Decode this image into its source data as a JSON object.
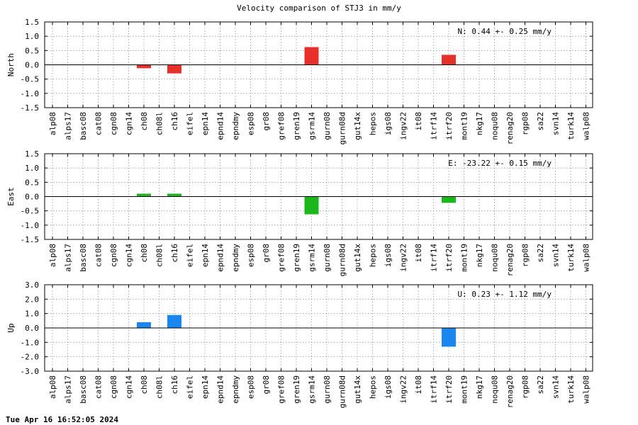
{
  "title": "Velocity comparison of STJ3 in mm/y",
  "timestamp": "Tue Apr 16 16:52:05 2024",
  "chart_data": [
    {
      "type": "bar",
      "ylabel": "North",
      "annotation": "N:   0.44 +-  0.25 mm/y",
      "color": "#e8302a",
      "ylim": [
        -1.5,
        1.5
      ],
      "yticks": [
        "1.5",
        "1.0",
        "0.5",
        "0.0",
        "-0.5",
        "-1.0",
        "-1.5"
      ],
      "grid": true,
      "categories": [
        "alp08",
        "alps17",
        "basc08",
        "cat08",
        "cgn08",
        "cgn14",
        "ch08",
        "ch08l",
        "ch16",
        "eifel",
        "epn14",
        "epnd14",
        "epndmy",
        "esp08",
        "gr08",
        "gref08",
        "gren19",
        "gsrm14",
        "gurn08",
        "gurn08d",
        "gut14x",
        "hepos",
        "igs08",
        "ingv22",
        "it08",
        "itrf14",
        "itrf20",
        "mont19",
        "nkg17",
        "noqu08",
        "renag20",
        "rgp08",
        "sa22",
        "svn14",
        "turk14",
        "walp08"
      ],
      "values": [
        null,
        null,
        null,
        null,
        null,
        null,
        -0.12,
        null,
        -0.3,
        null,
        null,
        null,
        null,
        null,
        null,
        null,
        null,
        0.62,
        null,
        null,
        null,
        null,
        null,
        null,
        null,
        null,
        0.35,
        null,
        null,
        null,
        null,
        null,
        null,
        null,
        null,
        null
      ]
    },
    {
      "type": "bar",
      "ylabel": "East",
      "annotation": "E: -23.22 +-  0.15 mm/y",
      "color": "#1ab81a",
      "ylim": [
        -1.5,
        1.5
      ],
      "yticks": [
        "1.5",
        "1.0",
        "0.5",
        "0.0",
        "-0.5",
        "-1.0",
        "-1.5"
      ],
      "grid": true,
      "categories": [
        "alp08",
        "alps17",
        "basc08",
        "cat08",
        "cgn08",
        "cgn14",
        "ch08",
        "ch08l",
        "ch16",
        "eifel",
        "epn14",
        "epnd14",
        "epndmy",
        "esp08",
        "gr08",
        "gref08",
        "gren19",
        "gsrm14",
        "gurn08",
        "gurn08d",
        "gut14x",
        "hepos",
        "igs08",
        "ingv22",
        "it08",
        "itrf14",
        "itrf20",
        "mont19",
        "nkg17",
        "noqu08",
        "renag20",
        "rgp08",
        "sa22",
        "svn14",
        "turk14",
        "walp08"
      ],
      "values": [
        null,
        null,
        null,
        null,
        null,
        null,
        0.1,
        null,
        0.1,
        null,
        null,
        null,
        null,
        null,
        null,
        null,
        null,
        -0.62,
        null,
        null,
        null,
        null,
        null,
        null,
        null,
        null,
        -0.22,
        null,
        null,
        null,
        null,
        null,
        null,
        null,
        null,
        null
      ]
    },
    {
      "type": "bar",
      "ylabel": "Up",
      "annotation": "U:   0.23 +-  1.12 mm/y",
      "color": "#1a86f0",
      "ylim": [
        -3.0,
        3.0
      ],
      "yticks": [
        "3.0",
        "2.0",
        "1.0",
        "0.0",
        "-1.0",
        "-2.0",
        "-3.0"
      ],
      "grid": true,
      "categories": [
        "alp08",
        "alps17",
        "basc08",
        "cat08",
        "cgn08",
        "cgn14",
        "ch08",
        "ch08l",
        "ch16",
        "eifel",
        "epn14",
        "epnd14",
        "epndmy",
        "esp08",
        "gr08",
        "gref08",
        "gren19",
        "gsrm14",
        "gurn08",
        "gurn08d",
        "gut14x",
        "hepos",
        "igs08",
        "ingv22",
        "it08",
        "itrf14",
        "itrf20",
        "mont19",
        "nkg17",
        "noqu08",
        "renag20",
        "rgp08",
        "sa22",
        "svn14",
        "turk14",
        "walp08"
      ],
      "values": [
        null,
        null,
        null,
        null,
        null,
        null,
        0.4,
        null,
        0.9,
        null,
        null,
        null,
        null,
        null,
        null,
        null,
        null,
        null,
        null,
        null,
        null,
        null,
        null,
        null,
        null,
        null,
        -1.3,
        null,
        null,
        null,
        null,
        null,
        null,
        null,
        null,
        null
      ]
    }
  ]
}
